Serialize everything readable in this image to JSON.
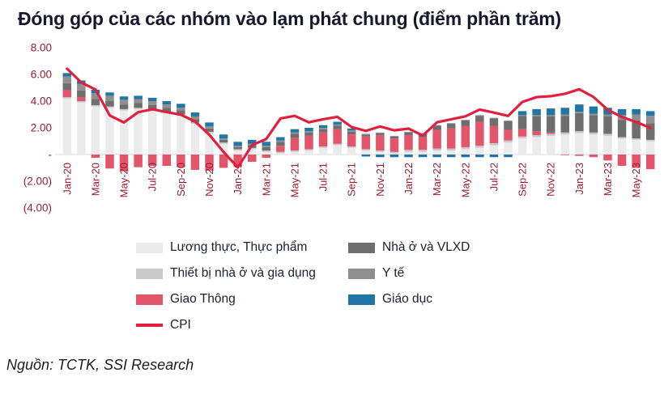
{
  "title": "Đóng góp của các nhóm vào lạm phát chung (điểm phần trăm)",
  "source": "Nguồn: TCTK, SSI Research",
  "colors": {
    "title": "#17172f",
    "axis_label": "#9e1b32",
    "zero_line": "#d9d9d9",
    "cpi_line": "#e2203e"
  },
  "chart_data": {
    "type": "bar",
    "stacked": true,
    "title": "Đóng góp của các nhóm vào lạm phát chung (điểm phần trăm)",
    "ylabel": "điểm phần trăm",
    "ylim": [
      -4,
      8
    ],
    "grid": false,
    "legend_position": "bottom",
    "y_ticks": [
      {
        "value": 8,
        "label": "8.00"
      },
      {
        "value": 6,
        "label": "6.00"
      },
      {
        "value": 4,
        "label": "4.00"
      },
      {
        "value": 2,
        "label": "2.00"
      },
      {
        "value": 0,
        "label": "-"
      },
      {
        "value": -2,
        "label": "(2.00)"
      },
      {
        "value": -4,
        "label": "(4.00)"
      }
    ],
    "x_tick_every": 2,
    "categories": [
      "Jan-20",
      "Feb-20",
      "Mar-20",
      "Apr-20",
      "May-20",
      "Jun-20",
      "Jul-20",
      "Aug-20",
      "Sep-20",
      "Oct-20",
      "Nov-20",
      "Dec-20",
      "Jan-21",
      "Feb-21",
      "Mar-21",
      "Apr-21",
      "May-21",
      "Jun-21",
      "Jul-21",
      "Aug-21",
      "Sep-21",
      "Oct-21",
      "Nov-21",
      "Dec-21",
      "Jan-22",
      "Feb-22",
      "Mar-22",
      "Apr-22",
      "May-22",
      "Jun-22",
      "Jul-22",
      "Aug-22",
      "Sep-22",
      "Oct-22",
      "Nov-22",
      "Dec-22",
      "Jan-23",
      "Feb-23",
      "Mar-23",
      "Apr-23",
      "May-23",
      "Jun-23"
    ],
    "series": [
      {
        "name": "Lương thực, Thực phẩm",
        "color": "#ebebeb",
        "values": [
          4.2,
          3.9,
          3.6,
          3.5,
          3.3,
          3.4,
          3.3,
          3.1,
          2.9,
          2.3,
          1.6,
          0.8,
          0.3,
          0.4,
          0.2,
          0.1,
          0.2,
          0.3,
          0.5,
          0.7,
          0.5,
          0.3,
          0.2,
          0.1,
          0.2,
          0.2,
          0.3,
          0.3,
          0.4,
          0.5,
          0.7,
          0.9,
          1.2,
          1.3,
          1.4,
          1.5,
          1.6,
          1.5,
          1.4,
          1.2,
          1.1,
          1.0
        ]
      },
      {
        "name": "Thiết bị nhà ở và gia dụng",
        "color": "#c9c9c9",
        "values": [
          0.1,
          0.1,
          0.1,
          0.1,
          0.1,
          0.1,
          0.1,
          0.1,
          0.1,
          0.1,
          0.1,
          0.1,
          0.1,
          0.1,
          0.1,
          0.1,
          0.1,
          0.1,
          0.1,
          0.1,
          0.1,
          0.1,
          0.1,
          0.1,
          0.15,
          0.15,
          0.15,
          0.15,
          0.15,
          0.15,
          0.15,
          0.15,
          0.15,
          0.15,
          0.15,
          0.15,
          0.15,
          0.15,
          0.15,
          0.1,
          0.1,
          0.1
        ]
      },
      {
        "name": "Giao Thông",
        "color": "#e2556b",
        "values": [
          0.55,
          0.3,
          -0.25,
          -1.05,
          -1.25,
          -0.95,
          -0.85,
          -0.85,
          -0.95,
          -1.15,
          -1.2,
          -1.0,
          -0.9,
          -0.55,
          -0.25,
          0.45,
          0.95,
          1.0,
          1.05,
          1.1,
          0.9,
          0.95,
          1.15,
          1.0,
          1.1,
          0.95,
          1.4,
          1.5,
          1.6,
          1.8,
          1.3,
          0.8,
          0.55,
          0.3,
          0.1,
          -0.05,
          -0.1,
          -0.2,
          -0.45,
          -0.85,
          -1.0,
          -1.1
        ]
      },
      {
        "name": "Nhà ở và VLXD",
        "color": "#6e6e6e",
        "values": [
          0.5,
          0.5,
          0.45,
          0.4,
          0.35,
          0.35,
          0.3,
          0.3,
          0.3,
          0.25,
          0.25,
          0.2,
          0.15,
          0.2,
          0.25,
          0.3,
          0.3,
          0.25,
          0.25,
          0.25,
          0.2,
          0.15,
          0.15,
          0.15,
          0.2,
          0.25,
          0.3,
          0.35,
          0.4,
          0.45,
          0.55,
          0.65,
          1.0,
          1.1,
          1.2,
          1.25,
          1.35,
          1.3,
          1.3,
          1.3,
          1.35,
          1.25
        ]
      },
      {
        "name": "Y tế",
        "color": "#8f8f8f",
        "values": [
          0.5,
          0.5,
          0.45,
          0.4,
          0.35,
          0.3,
          0.3,
          0.25,
          0.2,
          0.2,
          0.15,
          0.1,
          0.1,
          0.1,
          0.1,
          0.1,
          0.1,
          0.1,
          0.1,
          0.1,
          0.1,
          0.05,
          0.05,
          0.05,
          0.05,
          0.05,
          0.05,
          0.05,
          0.05,
          0.05,
          0.05,
          0.05,
          0.05,
          0.1,
          0.1,
          0.1,
          0.1,
          0.1,
          0.15,
          0.35,
          0.45,
          0.55
        ]
      },
      {
        "name": "Giáo dục",
        "color": "#2176a5",
        "values": [
          0.25,
          0.25,
          0.25,
          0.25,
          0.25,
          0.25,
          0.25,
          0.25,
          0.3,
          0.3,
          0.3,
          0.3,
          0.3,
          0.3,
          0.3,
          0.25,
          0.25,
          0.25,
          0.2,
          0.2,
          0.15,
          -0.15,
          -0.2,
          -0.2,
          -0.2,
          -0.2,
          -0.2,
          -0.2,
          -0.2,
          -0.2,
          -0.2,
          -0.2,
          0.3,
          0.45,
          0.5,
          0.5,
          0.55,
          0.55,
          0.5,
          0.45,
          0.4,
          0.35
        ]
      }
    ],
    "line": {
      "name": "CPI",
      "color": "#e2203e",
      "values": [
        6.43,
        5.4,
        4.87,
        2.93,
        2.4,
        3.17,
        3.39,
        3.18,
        2.98,
        2.47,
        1.48,
        0.19,
        -0.97,
        0.7,
        1.16,
        2.7,
        2.9,
        2.41,
        2.64,
        2.82,
        2.06,
        1.77,
        2.1,
        1.81,
        1.94,
        1.42,
        2.41,
        2.64,
        2.86,
        3.37,
        3.14,
        2.89,
        3.94,
        4.3,
        4.37,
        4.55,
        4.89,
        4.31,
        3.35,
        2.81,
        2.43,
        2.0
      ]
    },
    "legend_order": [
      "Lương thực, Thực phẩm",
      "Nhà ở và VLXD",
      "Thiết bị nhà ở và gia dụng",
      "Y tế",
      "Giao Thông",
      "Giáo dục",
      "CPI"
    ]
  }
}
